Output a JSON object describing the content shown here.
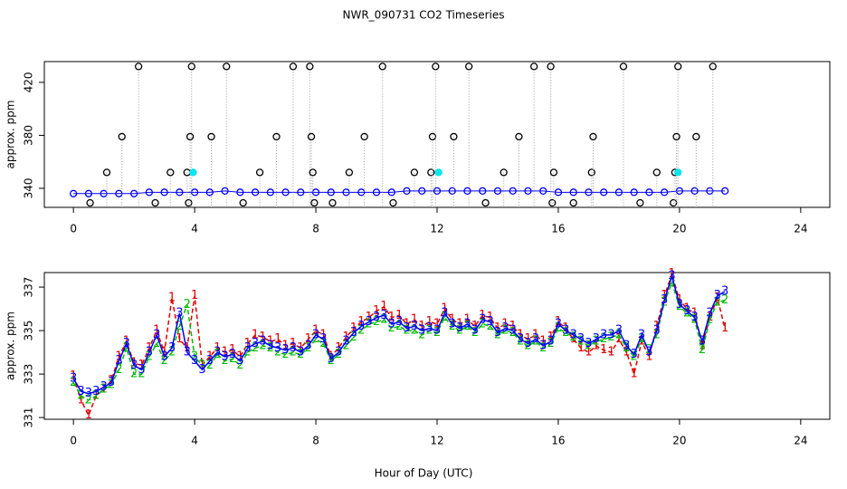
{
  "chart_data": [
    {
      "type": "scatter",
      "title": "NWR_090731  CO2 Timeseries",
      "ylabel": "approx. ppm",
      "xlim": [
        -0.96,
        24.96
      ],
      "ylim": [
        325.6,
        435.7
      ],
      "xticks": [
        0,
        4,
        8,
        12,
        16,
        20,
        24
      ],
      "yticks": [
        340,
        380,
        420
      ],
      "series": [
        {
          "color": "#0000ff",
          "linestyle": "solid",
          "marker": "circle",
          "x": [
            0,
            0.5,
            1,
            1.5,
            2,
            2.5,
            3,
            3.5,
            4,
            4.5,
            5,
            5.5,
            6,
            6.5,
            7,
            7.5,
            8,
            8.5,
            9,
            9.5,
            10,
            10.5,
            11,
            11.5,
            12,
            12.5,
            13,
            13.5,
            14,
            14.5,
            15,
            15.5,
            16,
            16.5,
            17,
            17.5,
            18,
            18.5,
            19,
            19.5,
            20,
            20.5,
            21,
            21.5
          ],
          "values": [
            336,
            336,
            336,
            336,
            336,
            337,
            337,
            337,
            337,
            337,
            338,
            337,
            337,
            337,
            337,
            337,
            337,
            337,
            337,
            337,
            337,
            337,
            338,
            338,
            338,
            338,
            338,
            338,
            338,
            338,
            338,
            338,
            337,
            337,
            337,
            337,
            337,
            337,
            337,
            337,
            338,
            338,
            338,
            338
          ]
        },
        {
          "color": "#000000",
          "linestyle": "stem",
          "marker": "circle",
          "x": [
            0.55,
            1.1,
            1.6,
            2.15,
            2.7,
            3.2,
            3.75,
            3.8,
            3.85,
            3.9,
            4.55,
            5.05,
            5.6,
            6.15,
            6.7,
            7.25,
            7.8,
            7.85,
            7.9,
            7.95,
            8.55,
            9.1,
            9.6,
            10.2,
            10.55,
            11.25,
            11.8,
            11.85,
            11.95,
            12.55,
            13.05,
            13.6,
            14.2,
            14.7,
            15.2,
            15.75,
            15.8,
            15.85,
            16.5,
            17.1,
            17.15,
            18.15,
            18.7,
            19.25,
            19.8,
            19.85,
            19.9,
            19.95,
            20.55,
            21.1
          ],
          "values": [
            329,
            352,
            379,
            432,
            329,
            352,
            352,
            329,
            379,
            432,
            379,
            432,
            329,
            352,
            379,
            432,
            432,
            379,
            352,
            329,
            329,
            352,
            379,
            432,
            329,
            352,
            352,
            379,
            432,
            379,
            432,
            329,
            352,
            379,
            432,
            432,
            329,
            352,
            329,
            352,
            379,
            432,
            329,
            352,
            329,
            352,
            379,
            432,
            379,
            432
          ]
        },
        {
          "color": "#00e5ee",
          "linestyle": "none",
          "marker": "disc",
          "x": [
            3.95,
            12.05,
            19.95
          ],
          "values": [
            352,
            352,
            352
          ]
        }
      ]
    },
    {
      "type": "line",
      "xlabel": "Hour of Day (UTC)",
      "ylabel": "approx. ppm",
      "xlim": [
        -0.96,
        24.96
      ],
      "ylim": [
        330.92,
        337.67
      ],
      "xticks": [
        0,
        4,
        8,
        12,
        16,
        20,
        24
      ],
      "yticks": [
        331,
        333,
        335,
        337
      ],
      "x": [
        0,
        0.25,
        0.5,
        0.75,
        1,
        1.25,
        1.5,
        1.75,
        2,
        2.25,
        2.5,
        2.75,
        3,
        3.25,
        3.5,
        3.75,
        4,
        4.25,
        4.5,
        4.75,
        5,
        5.25,
        5.5,
        5.75,
        6,
        6.25,
        6.5,
        6.75,
        7,
        7.25,
        7.5,
        7.75,
        8,
        8.25,
        8.5,
        8.75,
        9,
        9.25,
        9.5,
        9.75,
        10,
        10.25,
        10.5,
        10.75,
        11,
        11.25,
        11.5,
        11.75,
        12,
        12.25,
        12.5,
        12.75,
        13,
        13.25,
        13.5,
        13.75,
        14,
        14.25,
        14.5,
        14.75,
        15,
        15.25,
        15.5,
        15.75,
        16,
        16.25,
        16.5,
        16.75,
        17,
        17.25,
        17.5,
        17.75,
        18,
        18.25,
        18.5,
        18.75,
        19,
        19.25,
        19.5,
        19.75,
        20,
        20.25,
        20.5,
        20.75,
        21,
        21.25,
        21.5
      ],
      "series": [
        {
          "marker": "1",
          "color": "#dd0000",
          "linestyle": "dashed",
          "values": [
            332.9,
            331.8,
            331.1,
            332.0,
            332.3,
            332.7,
            333.8,
            334.5,
            333.5,
            333.4,
            334.2,
            335.0,
            334.0,
            336.5,
            334.6,
            334.2,
            336.6,
            333.4,
            333.8,
            334.2,
            334.0,
            334.1,
            333.8,
            334.4,
            334.8,
            334.7,
            334.5,
            334.6,
            334.3,
            334.4,
            334.2,
            334.6,
            335.0,
            334.8,
            333.8,
            334.2,
            334.7,
            335.1,
            335.4,
            335.6,
            335.9,
            336.1,
            335.6,
            335.7,
            335.3,
            335.5,
            335.2,
            335.4,
            335.3,
            336.0,
            335.5,
            335.3,
            335.5,
            335.2,
            335.7,
            335.6,
            335.1,
            335.3,
            335.2,
            334.8,
            334.6,
            334.8,
            334.5,
            334.7,
            335.4,
            335.1,
            334.6,
            334.2,
            334.0,
            334.3,
            334.1,
            334.0,
            334.6,
            334.0,
            333.0,
            334.5,
            333.8,
            335.2,
            336.6,
            337.6,
            336.4,
            336.0,
            335.8,
            334.3,
            335.6,
            336.5,
            335.1
          ]
        },
        {
          "marker": "2",
          "color": "#00bb00",
          "linestyle": "dashed",
          "values": [
            332.6,
            332.0,
            331.8,
            332.0,
            332.3,
            332.5,
            333.2,
            334.2,
            333.0,
            333.0,
            333.8,
            334.4,
            333.6,
            334.0,
            335.2,
            336.2,
            333.8,
            333.4,
            333.4,
            333.9,
            333.6,
            333.7,
            333.4,
            334.0,
            334.2,
            334.3,
            334.2,
            334.0,
            333.9,
            334.0,
            333.9,
            334.2,
            334.6,
            334.4,
            333.6,
            333.9,
            334.3,
            334.7,
            335.0,
            335.3,
            335.4,
            335.5,
            335.1,
            335.2,
            335.0,
            335.0,
            334.8,
            335.0,
            334.9,
            335.6,
            335.2,
            335.0,
            335.2,
            334.9,
            335.3,
            335.2,
            334.8,
            335.0,
            334.9,
            334.5,
            334.3,
            334.5,
            334.2,
            334.4,
            335.1,
            334.9,
            334.7,
            334.5,
            334.3,
            334.5,
            334.6,
            334.7,
            334.8,
            334.2,
            333.8,
            334.6,
            334.1,
            334.8,
            336.3,
            337.2,
            336.1,
            335.8,
            335.5,
            334.1,
            335.5,
            336.3,
            336.4
          ]
        },
        {
          "marker": "3",
          "color": "#0000ff",
          "linestyle": "solid",
          "values": [
            332.8,
            332.2,
            332.1,
            332.2,
            332.4,
            332.6,
            333.6,
            334.4,
            333.4,
            333.2,
            334.0,
            334.8,
            333.8,
            334.2,
            335.8,
            334.0,
            333.6,
            333.2,
            333.6,
            334.0,
            333.8,
            333.9,
            333.6,
            334.2,
            334.4,
            334.5,
            334.3,
            334.2,
            334.1,
            334.2,
            334.0,
            334.3,
            334.8,
            334.6,
            333.7,
            334.0,
            334.5,
            334.9,
            335.2,
            335.4,
            335.6,
            335.7,
            335.3,
            335.4,
            335.1,
            335.2,
            335.0,
            335.1,
            335.0,
            335.8,
            335.3,
            335.1,
            335.3,
            335.0,
            335.5,
            335.4,
            334.9,
            335.1,
            335.0,
            334.6,
            334.4,
            334.6,
            334.3,
            334.5,
            335.3,
            335.0,
            334.8,
            334.6,
            334.4,
            334.6,
            334.8,
            334.8,
            335.0,
            334.3,
            333.9,
            334.8,
            334.0,
            335.0,
            336.4,
            337.5,
            336.2,
            335.9,
            335.6,
            334.5,
            335.8,
            336.6,
            336.8
          ]
        }
      ]
    }
  ]
}
